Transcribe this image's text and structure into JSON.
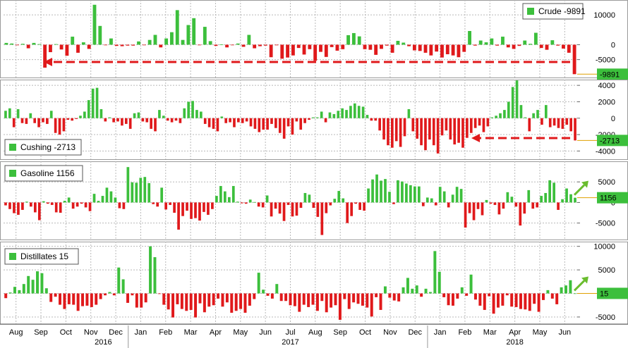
{
  "colors": {
    "positive": "#3cbf3c",
    "negative": "#e0191b",
    "grid": "#b8b8b8",
    "last_label_bg": "#3cbf3c",
    "arrow": "#e0191b",
    "marker_arrow": "#6abd2e"
  },
  "x_axis": {
    "months": [
      "Aug",
      "Sep",
      "Oct",
      "Nov",
      "Dec",
      "Jan",
      "Feb",
      "Mar",
      "Apr",
      "May",
      "Jun",
      "Jul",
      "Aug",
      "Sep",
      "Oct",
      "Nov",
      "Dec",
      "Jan",
      "Feb",
      "Mar",
      "Apr",
      "May",
      "Jun"
    ],
    "years": [
      "2016",
      "2017",
      "2018"
    ]
  },
  "chart_data": [
    {
      "type": "bar",
      "series": [
        {
          "name": "Crude",
          "legend": "Crude -9891",
          "last_label": "-9891"
        }
      ],
      "values": [
        600,
        400,
        -100,
        300,
        -1200,
        600,
        200,
        -7700,
        -2500,
        200,
        -1600,
        -3700,
        2700,
        -2700,
        800,
        -1400,
        13400,
        6300,
        -100,
        2100,
        -400,
        -500,
        -300,
        -300,
        1100,
        -100,
        1600,
        3300,
        -900,
        2100,
        4200,
        11600,
        1600,
        6600,
        8900,
        -100,
        6000,
        1200,
        -400,
        100,
        -900,
        -100,
        400,
        -700,
        3300,
        -1200,
        -500,
        -300,
        -4200,
        -200,
        -4700,
        -4300,
        -3600,
        -1100,
        -3300,
        -1500,
        -5400,
        -2400,
        -4100,
        -800,
        -2000,
        -1500,
        3200,
        3900,
        2800,
        -1500,
        -1700,
        -3400,
        -1400,
        -300,
        -2700,
        1300,
        700,
        -500,
        -1900,
        -2100,
        -2700,
        -3600,
        -2300,
        -4300,
        -3200,
        -3600,
        -4200,
        -2400,
        4600,
        -300,
        1400,
        800,
        2100,
        -300,
        2700,
        -900,
        -1400,
        -400,
        1400,
        300,
        4000,
        -1100,
        -1700,
        1500,
        -300,
        -1300,
        -2700,
        -9891
      ],
      "ylim": [
        -11000,
        15000
      ],
      "yticks": [
        10000,
        0,
        -5000
      ]
    },
    {
      "type": "bar",
      "series": [
        {
          "name": "Cushing",
          "legend": "Cushing -2713",
          "last_label": "-2713"
        }
      ],
      "values": [
        900,
        1200,
        -1100,
        1100,
        -600,
        -700,
        600,
        -600,
        -1100,
        -500,
        -700,
        900,
        -1800,
        -2000,
        -1600,
        -200,
        -300,
        -100,
        300,
        800,
        2200,
        3600,
        3700,
        1100,
        -400,
        100,
        -500,
        -400,
        -900,
        -700,
        -1300,
        600,
        700,
        -400,
        -500,
        -1300,
        -1600,
        1000,
        300,
        -300,
        -500,
        -300,
        -600,
        1200,
        2000,
        2100,
        1000,
        800,
        -700,
        -1100,
        -1300,
        -1600,
        200,
        -600,
        -500,
        -1100,
        -500,
        -600,
        -400,
        -1000,
        -1300,
        -1700,
        -1400,
        -1400,
        -700,
        -1200,
        -1800,
        -2500,
        -1000,
        -2000,
        -400,
        -1400,
        -600,
        -200,
        100,
        100,
        800,
        -500,
        700,
        500,
        900,
        1200,
        1000,
        1500,
        1800,
        1500,
        1400,
        400,
        -300,
        -300,
        -1500,
        -2600,
        -3300,
        -3600,
        -2800,
        -3500,
        -2200,
        1100,
        -1600,
        -2500,
        -3300,
        -3900,
        -2600,
        -3300,
        -4300,
        -2100,
        -1500,
        -2600,
        -3200,
        -3000,
        -3600,
        -2400,
        -1800,
        -1200,
        -900,
        -1700,
        -1000,
        100,
        300,
        600,
        1000,
        2000,
        3800,
        4600,
        1600,
        100,
        -1600,
        600,
        1000,
        -800,
        1600,
        -1100,
        -900,
        -1200,
        -1300,
        -800,
        -1600,
        -2713
      ],
      "ylim": [
        -5000,
        4700
      ],
      "yticks": [
        4000,
        2000,
        0,
        -2000,
        -4000
      ]
    },
    {
      "type": "bar",
      "series": [
        {
          "name": "Gasoline",
          "legend": "Gasoline 1156",
          "last_label": "1156"
        }
      ],
      "values": [
        -700,
        -1600,
        -2600,
        -3000,
        -1800,
        200,
        -1000,
        -2400,
        -4300,
        300,
        -300,
        -600,
        -2400,
        -2500,
        400,
        1200,
        -1500,
        -1000,
        -300,
        -1200,
        -2100,
        2100,
        400,
        1600,
        3600,
        2700,
        1200,
        -1400,
        -1600,
        8600,
        4900,
        4800,
        6000,
        6200,
        4700,
        -400,
        -1000,
        3600,
        -1700,
        -600,
        -2500,
        -6600,
        -3300,
        -2000,
        -4000,
        -3800,
        -4400,
        -2300,
        -3000,
        -1600,
        1600,
        4000,
        2700,
        1300,
        4000,
        200,
        -200,
        -300,
        700,
        100,
        -1000,
        -1200,
        1700,
        -3400,
        -1500,
        -2700,
        -4500,
        -600,
        -3400,
        -3200,
        -1300,
        2300,
        1900,
        -1300,
        -3500,
        -7900,
        -2600,
        -700,
        900,
        2800,
        1000,
        -5000,
        -3300,
        -300,
        -1800,
        -2000,
        3400,
        5600,
        6800,
        5300,
        5700,
        2600,
        -400,
        5400,
        5100,
        4600,
        4200,
        3900,
        3900,
        -900,
        1200,
        1000,
        -700,
        3800,
        2700,
        -1200,
        1900,
        3800,
        3300,
        -6100,
        -2600,
        -4300,
        -1600,
        -3100,
        600,
        -300,
        -600,
        -2900,
        -1500,
        2500,
        1400,
        -1000,
        -5600,
        -2700,
        3000,
        -1500,
        -1200,
        1600,
        2300,
        5400,
        4800,
        -1800,
        800,
        3400,
        2000,
        1156
      ],
      "ylim": [
        -9000,
        10000
      ],
      "yticks": [
        5000,
        0,
        -5000
      ]
    },
    {
      "type": "bar",
      "series": [
        {
          "name": "Distillates",
          "legend": "Distillates 15",
          "last_label": "15"
        }
      ],
      "values": [
        -1000,
        200,
        1400,
        700,
        2000,
        3700,
        2900,
        4700,
        4300,
        1100,
        -1800,
        -700,
        -2400,
        -3300,
        -2300,
        -2400,
        -3700,
        -2700,
        -2600,
        -2900,
        -2400,
        -1200,
        -400,
        300,
        -400,
        5500,
        3000,
        -2000,
        -400,
        -3000,
        -3000,
        -1900,
        10000,
        7700,
        -100,
        -2400,
        -3400,
        -5100,
        -2300,
        -3300,
        -3700,
        -3500,
        -5100,
        -2100,
        -4000,
        -2800,
        -2500,
        -1100,
        -2800,
        -1900,
        -4100,
        -3700,
        -3300,
        -4100,
        -2600,
        -1200,
        4400,
        800,
        -500,
        -1100,
        2000,
        -1600,
        -1600,
        -2500,
        -2700,
        -3900,
        -2400,
        -2900,
        -2400,
        -3700,
        -1600,
        -4000,
        -3000,
        -2500,
        -5600,
        -1200,
        -3300,
        -1900,
        -2200,
        -2600,
        -3000,
        -4900,
        -800,
        -3500,
        1500,
        -900,
        -1500,
        -1700,
        1300,
        3300,
        1000,
        1700,
        -700,
        1000,
        300,
        9000,
        4600,
        -800,
        -2500,
        -2600,
        -1100,
        1300,
        -500,
        4000,
        -1300,
        -2600,
        -3500,
        -600,
        -4300,
        -3000,
        -2600,
        -400,
        -2800,
        -2900,
        -3300,
        -3400,
        -3700,
        -2200,
        -3900,
        -1400,
        700,
        -1100,
        -2300,
        1300,
        1700,
        2800,
        15
      ],
      "ylim": [
        -6500,
        11000
      ],
      "yticks": [
        10000,
        5000,
        0,
        -5000
      ]
    }
  ]
}
